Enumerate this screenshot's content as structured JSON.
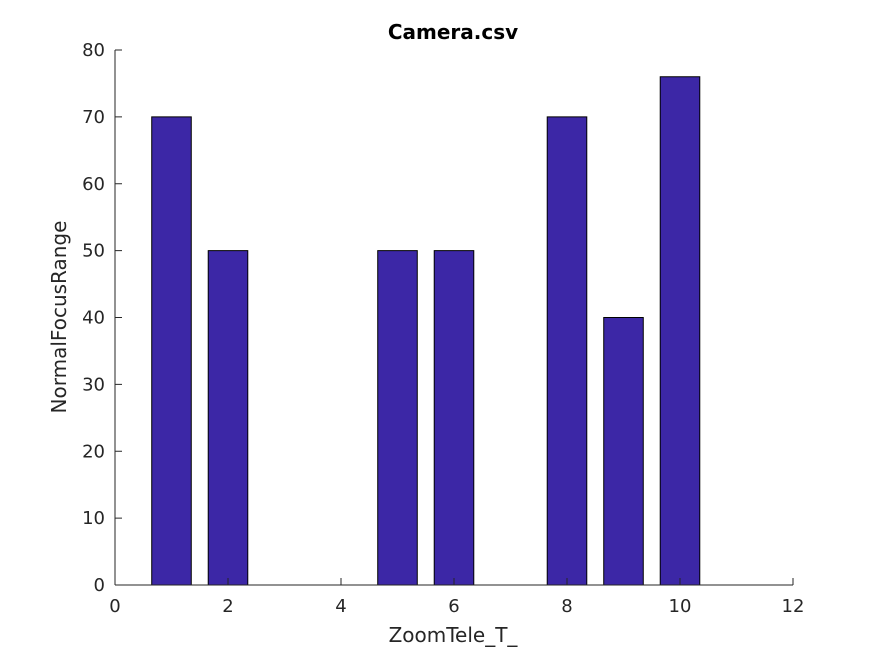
{
  "chart_data": {
    "type": "bar",
    "title": "Camera.csv",
    "xlabel": "ZoomTele_T_",
    "ylabel": "NormalFocusRange",
    "x": [
      1,
      2,
      5,
      6,
      8,
      9,
      10
    ],
    "values": [
      70,
      50,
      50,
      50,
      70,
      40,
      76
    ],
    "xlim": [
      0,
      12
    ],
    "ylim": [
      0,
      80
    ],
    "xticks": [
      0,
      2,
      4,
      6,
      8,
      10,
      12
    ],
    "yticks": [
      0,
      10,
      20,
      30,
      40,
      50,
      60,
      70,
      80
    ],
    "bar_color": "#3c27a6",
    "grid": false,
    "legend": "none"
  }
}
